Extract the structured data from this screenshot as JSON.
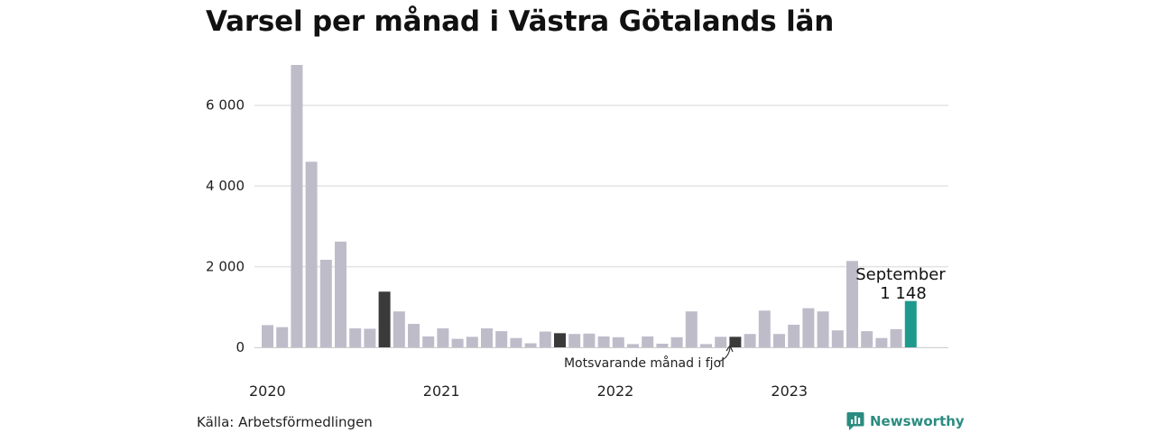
{
  "chart_data": {
    "type": "bar",
    "title": "Varsel per månad i Västra Götalands län",
    "xlabel": "",
    "ylabel": "",
    "ylim": [
      0,
      7000
    ],
    "yticks": [
      0,
      2000,
      4000,
      6000
    ],
    "ytick_labels": [
      "0",
      "2 000",
      "4 000",
      "6 000"
    ],
    "year_labels": [
      "2020",
      "2021",
      "2022",
      "2023"
    ],
    "grid": true,
    "series": [
      {
        "values": [
          550,
          500,
          7000,
          4600,
          2170,
          2620,
          470,
          460,
          1380,
          890,
          580,
          270,
          470,
          210,
          260,
          470,
          400,
          230,
          100,
          390,
          350,
          330,
          340,
          270,
          250,
          80,
          270,
          90,
          250,
          890,
          80,
          260,
          260,
          330,
          910,
          330,
          560,
          970,
          890,
          420,
          2140,
          400,
          230,
          450,
          1148
        ]
      }
    ],
    "highlight_dark_indices": [
      8,
      20,
      32
    ],
    "highlight_current_index": 44,
    "colors": {
      "bar": "#bfbcca",
      "previous_year": "#3a3a3a",
      "current": "#1e9a8d",
      "grid": "#e3e3e3",
      "axis": "#cccccc"
    },
    "annotations": {
      "current_month": "September",
      "current_value": "1 148",
      "previous_year_note": "Motsvarande månad i fjol"
    }
  },
  "footer": {
    "source": "Källa: Arbetsförmedlingen",
    "brand": "Newsworthy"
  },
  "icons": {
    "brand_logo": "newsworthy-logo-icon"
  }
}
